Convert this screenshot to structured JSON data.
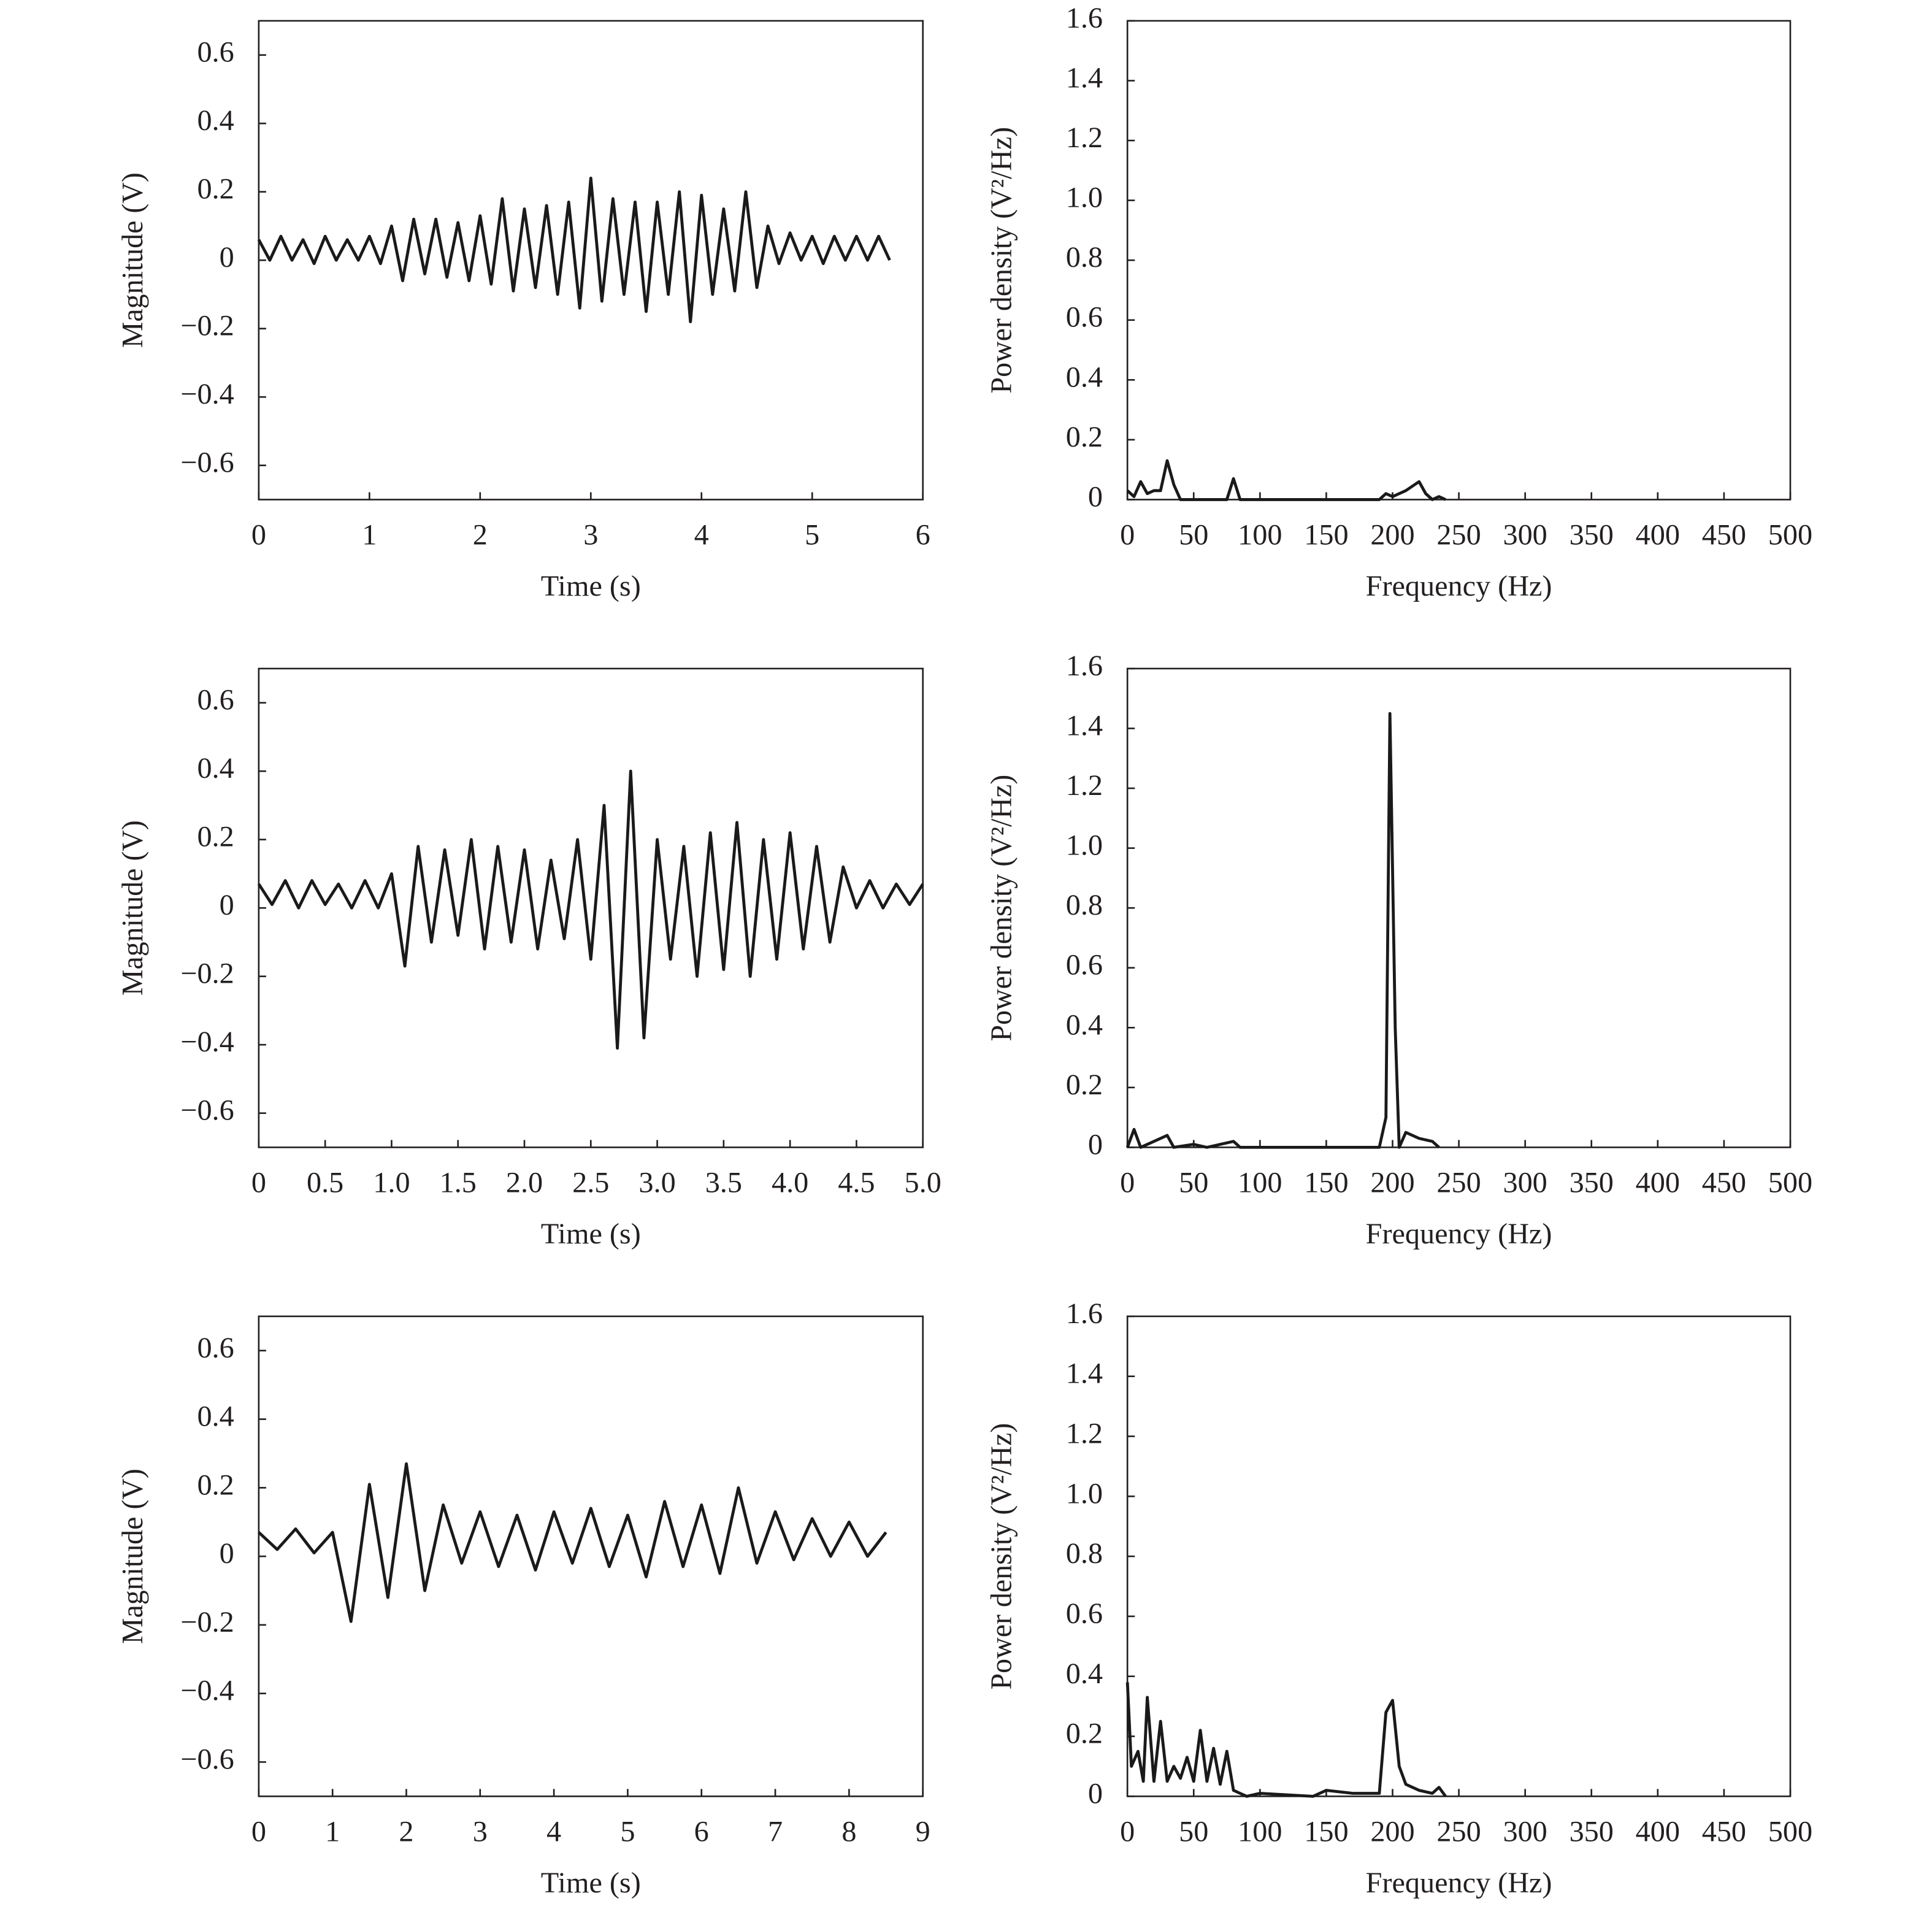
{
  "chart_data": [
    {
      "type": "line",
      "xlabel": "Time (s)",
      "ylabel": "Magnitude (V)",
      "color": "#1a1a1a",
      "xlim": [
        0,
        6
      ],
      "xticks": [
        0,
        1,
        2,
        3,
        4,
        5,
        6
      ],
      "ylim": [
        -0.7,
        0.7
      ],
      "yticks": [
        {
          "value": -0.6,
          "label": "−0.6"
        },
        {
          "value": -0.4,
          "label": "−0.4"
        },
        {
          "value": -0.2,
          "label": "−0.2"
        },
        0,
        0.2,
        0.4,
        0.6
      ],
      "x": [
        0,
        0.1,
        0.2,
        0.3,
        0.4,
        0.5,
        0.6,
        0.7,
        0.8,
        0.9,
        1.0,
        1.1,
        1.2,
        1.3,
        1.4,
        1.5,
        1.6,
        1.7,
        1.8,
        1.9,
        2.0,
        2.1,
        2.2,
        2.3,
        2.4,
        2.5,
        2.6,
        2.7,
        2.8,
        2.9,
        3.0,
        3.1,
        3.2,
        3.3,
        3.4,
        3.5,
        3.6,
        3.7,
        3.8,
        3.9,
        4.0,
        4.1,
        4.2,
        4.3,
        4.4,
        4.5,
        4.6,
        4.7,
        4.8,
        4.9,
        5.0,
        5.1,
        5.2,
        5.3,
        5.4,
        5.5,
        5.6,
        5.7
      ],
      "values": [
        0.06,
        0.0,
        0.07,
        0.0,
        0.06,
        -0.01,
        0.07,
        0.0,
        0.06,
        0.0,
        0.07,
        -0.01,
        0.1,
        -0.06,
        0.12,
        -0.04,
        0.12,
        -0.05,
        0.11,
        -0.06,
        0.13,
        -0.07,
        0.18,
        -0.09,
        0.15,
        -0.08,
        0.16,
        -0.1,
        0.17,
        -0.14,
        0.24,
        -0.12,
        0.18,
        -0.1,
        0.17,
        -0.15,
        0.17,
        -0.1,
        0.2,
        -0.18,
        0.19,
        -0.1,
        0.15,
        -0.09,
        0.2,
        -0.08,
        0.1,
        -0.01,
        0.08,
        0.0,
        0.07,
        -0.01,
        0.07,
        0.0,
        0.07,
        0.0,
        0.07,
        0.0
      ]
    },
    {
      "type": "line",
      "xlabel": "Frequency (Hz)",
      "ylabel": "Power density (V²/Hz)",
      "color": "#1a1a1a",
      "xlim": [
        0,
        500
      ],
      "xticks": [
        0,
        50,
        100,
        150,
        200,
        250,
        300,
        350,
        400,
        450,
        500
      ],
      "ylim": [
        0,
        1.6
      ],
      "yticks": [
        0,
        0.2,
        0.4,
        0.6,
        0.8,
        {
          "value": 1.0,
          "label": "1.0"
        },
        1.2,
        1.4,
        1.6
      ],
      "x": [
        0,
        5,
        10,
        15,
        20,
        25,
        30,
        35,
        40,
        60,
        75,
        80,
        85,
        100,
        190,
        195,
        200,
        210,
        220,
        225,
        230,
        235,
        240
      ],
      "values": [
        0.03,
        0.01,
        0.06,
        0.02,
        0.03,
        0.03,
        0.13,
        0.05,
        0,
        0,
        0,
        0.07,
        0,
        0,
        0,
        0.02,
        0.01,
        0.03,
        0.06,
        0.02,
        0,
        0.01,
        0
      ]
    },
    {
      "type": "line",
      "xlabel": "Time (s)",
      "ylabel": "Magnitude (V)",
      "color": "#1a1a1a",
      "xlim": [
        0,
        5
      ],
      "xticks": [
        0,
        0.5,
        {
          "value": 1.0,
          "label": "1.0"
        },
        1.5,
        {
          "value": 2.0,
          "label": "2.0"
        },
        2.5,
        {
          "value": 3.0,
          "label": "3.0"
        },
        3.5,
        {
          "value": 4.0,
          "label": "4.0"
        },
        4.5,
        {
          "value": 5.0,
          "label": "5.0"
        }
      ],
      "ylim": [
        -0.7,
        0.7
      ],
      "yticks": [
        {
          "value": -0.6,
          "label": "−0.6"
        },
        {
          "value": -0.4,
          "label": "−0.4"
        },
        {
          "value": -0.2,
          "label": "−0.2"
        },
        0,
        0.2,
        0.4,
        0.6
      ],
      "x": [
        0,
        0.1,
        0.2,
        0.3,
        0.4,
        0.5,
        0.6,
        0.7,
        0.8,
        0.9,
        1.0,
        1.1,
        1.2,
        1.3,
        1.4,
        1.5,
        1.6,
        1.7,
        1.8,
        1.9,
        2.0,
        2.1,
        2.2,
        2.3,
        2.4,
        2.5,
        2.6,
        2.7,
        2.8,
        2.9,
        3.0,
        3.1,
        3.2,
        3.3,
        3.4,
        3.5,
        3.6,
        3.7,
        3.8,
        3.9,
        4.0,
        4.1,
        4.2,
        4.3,
        4.4,
        4.5,
        4.6,
        4.7,
        4.8,
        4.9,
        5.0
      ],
      "values": [
        0.07,
        0.01,
        0.08,
        0.0,
        0.08,
        0.01,
        0.07,
        0.0,
        0.08,
        0.0,
        0.1,
        -0.17,
        0.18,
        -0.1,
        0.17,
        -0.08,
        0.2,
        -0.12,
        0.18,
        -0.1,
        0.17,
        -0.12,
        0.14,
        -0.09,
        0.2,
        -0.15,
        0.3,
        -0.41,
        0.4,
        -0.38,
        0.2,
        -0.15,
        0.18,
        -0.2,
        0.22,
        -0.18,
        0.25,
        -0.2,
        0.2,
        -0.15,
        0.22,
        -0.12,
        0.18,
        -0.1,
        0.12,
        0.0,
        0.08,
        0.0,
        0.07,
        0.01,
        0.07
      ]
    },
    {
      "type": "line",
      "xlabel": "Frequency (Hz)",
      "ylabel": "Power density (V²/Hz)",
      "color": "#1a1a1a",
      "xlim": [
        0,
        500
      ],
      "xticks": [
        0,
        50,
        100,
        150,
        200,
        250,
        300,
        350,
        400,
        450,
        500
      ],
      "ylim": [
        0,
        1.6
      ],
      "yticks": [
        0,
        0.2,
        0.4,
        0.6,
        0.8,
        {
          "value": 1.0,
          "label": "1.0"
        },
        1.2,
        1.4,
        1.6
      ],
      "x": [
        0,
        5,
        10,
        30,
        35,
        50,
        60,
        70,
        80,
        85,
        100,
        190,
        195,
        198,
        202,
        205,
        210,
        220,
        230,
        235
      ],
      "values": [
        0,
        0.06,
        0,
        0.04,
        0,
        0.01,
        0,
        0.01,
        0.02,
        0,
        0,
        0,
        0.1,
        1.45,
        0.4,
        0,
        0.05,
        0.03,
        0.02,
        0
      ]
    },
    {
      "type": "line",
      "xlabel": "Time (s)",
      "ylabel": "Magnitude (V)",
      "color": "#1a1a1a",
      "xlim": [
        0,
        9
      ],
      "xticks": [
        0,
        1,
        2,
        3,
        4,
        5,
        6,
        7,
        8,
        9
      ],
      "ylim": [
        -0.7,
        0.7
      ],
      "yticks": [
        {
          "value": -0.6,
          "label": "−0.6"
        },
        {
          "value": -0.4,
          "label": "−0.4"
        },
        {
          "value": -0.2,
          "label": "−0.2"
        },
        0,
        0.2,
        0.4,
        0.6
      ],
      "x": [
        0,
        0.25,
        0.5,
        0.75,
        1.0,
        1.25,
        1.5,
        1.75,
        2.0,
        2.25,
        2.5,
        2.75,
        3.0,
        3.25,
        3.5,
        3.75,
        4.0,
        4.25,
        4.5,
        4.75,
        5.0,
        5.25,
        5.5,
        5.75,
        6.0,
        6.25,
        6.5,
        6.75,
        7.0,
        7.25,
        7.5,
        7.75,
        8.0,
        8.25,
        8.5
      ],
      "values": [
        0.07,
        0.02,
        0.08,
        0.01,
        0.07,
        -0.19,
        0.21,
        -0.12,
        0.27,
        -0.1,
        0.15,
        -0.02,
        0.13,
        -0.03,
        0.12,
        -0.04,
        0.13,
        -0.02,
        0.14,
        -0.03,
        0.12,
        -0.06,
        0.16,
        -0.03,
        0.15,
        -0.05,
        0.2,
        -0.02,
        0.13,
        -0.01,
        0.11,
        0.0,
        0.1,
        0.0,
        0.07
      ]
    },
    {
      "type": "line",
      "xlabel": "Frequency (Hz)",
      "ylabel": "Power density (V²/Hz)",
      "color": "#1a1a1a",
      "xlim": [
        0,
        500
      ],
      "xticks": [
        0,
        50,
        100,
        150,
        200,
        250,
        300,
        350,
        400,
        450,
        500
      ],
      "ylim": [
        0,
        1.6
      ],
      "yticks": [
        0,
        0.2,
        0.4,
        0.6,
        0.8,
        {
          "value": 1.0,
          "label": "1.0"
        },
        1.2,
        1.4,
        1.6
      ],
      "x": [
        0,
        3,
        8,
        12,
        15,
        20,
        25,
        30,
        35,
        40,
        45,
        50,
        55,
        60,
        65,
        70,
        75,
        80,
        85,
        90,
        100,
        140,
        150,
        170,
        190,
        195,
        200,
        205,
        210,
        220,
        230,
        235,
        240
      ],
      "values": [
        0.38,
        0.1,
        0.15,
        0.05,
        0.33,
        0.05,
        0.25,
        0.05,
        0.1,
        0.06,
        0.13,
        0.05,
        0.22,
        0.05,
        0.16,
        0.04,
        0.15,
        0.02,
        0.01,
        0,
        0.01,
        0,
        0.02,
        0.01,
        0.01,
        0.28,
        0.32,
        0.1,
        0.04,
        0.02,
        0.01,
        0.03,
        0
      ]
    }
  ]
}
